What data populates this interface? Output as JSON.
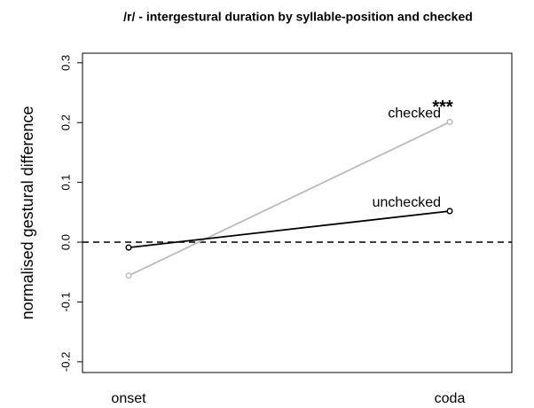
{
  "chart_data": {
    "type": "line",
    "title": "/r/ - intergestural duration by syllable-position and checked",
    "y_label": "normalised gestural difference",
    "categories": [
      "onset",
      "coda"
    ],
    "series": [
      {
        "name": "checked",
        "color": "#bbbbbb",
        "values": [
          -0.056,
          0.201
        ]
      },
      {
        "name": "unchecked",
        "color": "#000000",
        "values": [
          -0.009,
          0.052
        ]
      }
    ],
    "annotation": "***",
    "reference_line": 0,
    "ylim": [
      -0.218,
      0.316
    ],
    "yticks": [
      -0.2,
      -0.1,
      {
        "value": 0,
        "label": "0.0"
      },
      0.1,
      0.2,
      0.3
    ]
  }
}
